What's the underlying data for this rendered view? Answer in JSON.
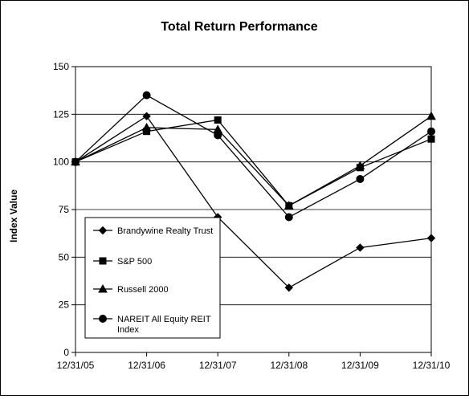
{
  "chart_data": {
    "type": "line",
    "title": "Total Return Performance",
    "xlabel": "",
    "ylabel": "Index Value",
    "categories": [
      "12/31/05",
      "12/31/06",
      "12/31/07",
      "12/31/08",
      "12/31/09",
      "12/31/10"
    ],
    "ylim": [
      0,
      150
    ],
    "yticks": [
      0,
      25,
      50,
      75,
      100,
      125,
      150
    ],
    "grid": "horizontal",
    "legend_position": "lower-left",
    "series": [
      {
        "name": "Brandywine Realty Trust",
        "marker": "diamond",
        "values": [
          100,
          124,
          71,
          34,
          55,
          60
        ]
      },
      {
        "name": "S&P 500",
        "marker": "square",
        "values": [
          100,
          116,
          122,
          77,
          97,
          112
        ]
      },
      {
        "name": "Russell 2000",
        "marker": "triangle",
        "values": [
          100,
          118,
          117,
          77,
          98,
          124
        ]
      },
      {
        "name": "NAREIT All Equity REIT Index",
        "marker": "circle",
        "values": [
          100,
          135,
          114,
          71,
          91,
          116
        ]
      }
    ]
  }
}
